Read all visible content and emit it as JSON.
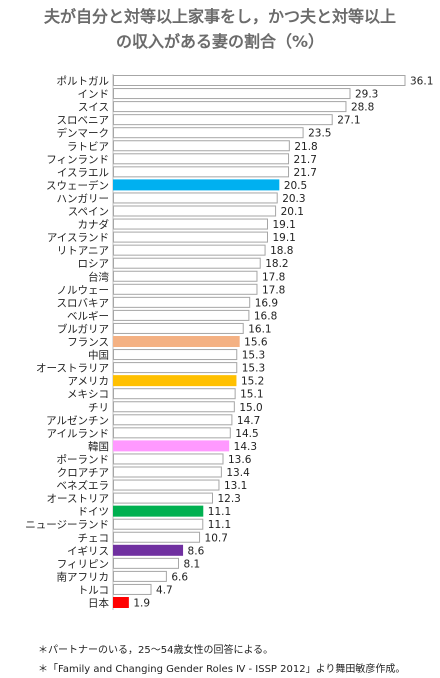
{
  "title_line1": "夫が自分と対等以上家事をし，かつ夫と対等以上",
  "title_line2": "の収入がある妻の割合（%）",
  "notes": [
    "＊パートナーのいる，25～54歳女性の回答による。",
    "＊「Family and Changing Gender Roles Ⅳ - ISSP 2012」より舞田敏彦作成。"
  ],
  "colors": {
    "default_fill": "#ffffff",
    "bar_border": "#a6a6a6",
    "スウェーデン": "#00b0f0",
    "フランス": "#f4b183",
    "アメリカ": "#ffc000",
    "韓国": "#ff99ff",
    "ドイツ": "#00b050",
    "イギリス": "#7030a0",
    "日本": "#ff0000"
  },
  "chart_data": {
    "type": "bar",
    "orientation": "horizontal",
    "title": "夫が自分と対等以上家事をし，かつ夫と対等以上の収入がある妻の割合（%）",
    "xlim": [
      0,
      36.1
    ],
    "grid": false,
    "legend": "none",
    "categories": [
      "ポルトガル",
      "インド",
      "スイス",
      "スロベニア",
      "デンマーク",
      "ラトビア",
      "フィンランド",
      "イスラエル",
      "スウェーデン",
      "ハンガリー",
      "スペイン",
      "カナダ",
      "アイスランド",
      "リトアニア",
      "ロシア",
      "台湾",
      "ノルウェー",
      "スロバキア",
      "ベルギー",
      "ブルガリア",
      "フランス",
      "中国",
      "オーストラリア",
      "アメリカ",
      "メキシコ",
      "チリ",
      "アルゼンチン",
      "アイルランド",
      "韓国",
      "ポーランド",
      "クロアチア",
      "ベネズエラ",
      "オーストリア",
      "ドイツ",
      "ニュージーランド",
      "チェコ",
      "イギリス",
      "フィリピン",
      "南アフリカ",
      "トルコ",
      "日本"
    ],
    "values": [
      36.1,
      29.3,
      28.8,
      27.1,
      23.5,
      21.8,
      21.7,
      21.7,
      20.5,
      20.3,
      20.1,
      19.1,
      19.1,
      18.8,
      18.2,
      17.8,
      17.8,
      16.9,
      16.8,
      16.1,
      15.6,
      15.3,
      15.3,
      15.2,
      15.1,
      15.0,
      14.7,
      14.5,
      14.3,
      13.6,
      13.4,
      13.1,
      12.3,
      11.1,
      11.1,
      10.7,
      8.6,
      8.1,
      6.6,
      4.7,
      1.9
    ],
    "labels": [
      "36.1",
      "29.3",
      "28.8",
      "27.1",
      "23.5",
      "21.8",
      "21.7",
      "21.7",
      "20.5",
      "20.3",
      "20.1",
      "19.1",
      "19.1",
      "18.8",
      "18.2",
      "17.8",
      "17.8",
      "16.9",
      "16.8",
      "16.1",
      "15.6",
      "15.3",
      "15.3",
      "15.2",
      "15.1",
      "15.0",
      "14.7",
      "14.5",
      "14.3",
      "13.6",
      "13.4",
      "13.1",
      "12.3",
      "11.1",
      "11.1",
      "10.7",
      "8.6",
      "8.1",
      "6.6",
      "4.7",
      "1.9"
    ]
  }
}
